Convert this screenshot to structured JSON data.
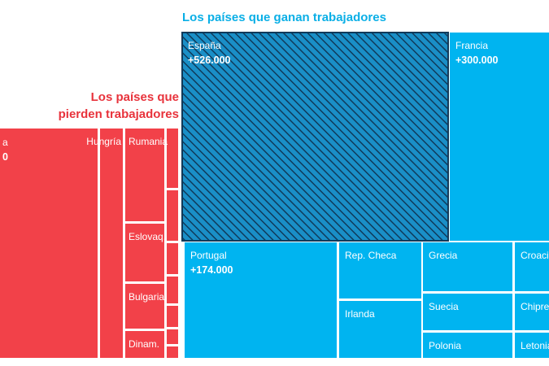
{
  "chart_data": {
    "type": "treemap",
    "title_gain": "Los países que ganan trabajadores",
    "title_lose_line1": "Los países que",
    "title_lose_line2": "pierden trabajadores",
    "colors": {
      "gain": "#00b4f0",
      "lose": "#f24149",
      "highlight": "#1a8fc7",
      "hatch": "#103a5a"
    },
    "gain": [
      {
        "name": "España",
        "value_label": "+526.000",
        "value": 526000,
        "highlight": true
      },
      {
        "name": "Francia",
        "value_label": "+300.000",
        "value": 300000
      },
      {
        "name": "Portugal",
        "value_label": "+174.000",
        "value": 174000
      },
      {
        "name": "Rep. Checa"
      },
      {
        "name": "Irlanda"
      },
      {
        "name": "Grecia"
      },
      {
        "name": "Suecia"
      },
      {
        "name": "Polonia"
      },
      {
        "name": "Croacia"
      },
      {
        "name": "Chipre"
      },
      {
        "name": "Letonia"
      }
    ],
    "lose": [
      {
        "name": "a",
        "value_label": "0"
      },
      {
        "name": "Hungría"
      },
      {
        "name": "Rumania"
      },
      {
        "name": "Eslovaq."
      },
      {
        "name": "Bulgaria"
      },
      {
        "name": "Dinam."
      }
    ]
  }
}
